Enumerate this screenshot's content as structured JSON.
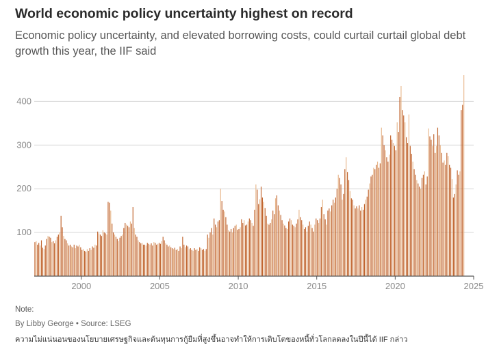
{
  "header": {
    "title": "World economic policy uncertainty highest on record",
    "subtitle": "Economic policy uncertainty, and elevated borrowing costs, could curtail curtail global debt growth this year, the IIF said"
  },
  "footer": {
    "note": "Note:",
    "credit": "By Libby George • Source: LSEG",
    "caption": "ความไม่แน่นอนของนโยบายเศรษฐกิจและต้นทุนการกู้ยืมที่สูงขึ้นอาจทำให้การเติบโตของหนี้ทั่วโลกลดลงในปีนี้ได้ IIF กล่าว"
  },
  "colors": {
    "bar_dark": "#c1652f",
    "bar_light": "#e8b98f",
    "grid": "#d9d9d9",
    "axis": "#555555"
  },
  "chart_data": {
    "type": "bar",
    "title": "World economic policy uncertainty highest on record",
    "xlabel": "",
    "ylabel": "",
    "frequency": "monthly",
    "x_start": "1997-01",
    "x_end": "2025-01",
    "xlim": [
      "1997-01",
      "2025-01"
    ],
    "ylim": [
      0,
      460
    ],
    "yticks": [
      100,
      200,
      300,
      400
    ],
    "xticks": [
      "2000",
      "2005",
      "2010",
      "2015",
      "2020",
      "2025"
    ],
    "grid": true,
    "legend": "none",
    "values": [
      78,
      80,
      72,
      76,
      70,
      82,
      65,
      62,
      70,
      85,
      92,
      90,
      88,
      78,
      80,
      75,
      82,
      90,
      95,
      100,
      138,
      112,
      92,
      85,
      82,
      75,
      70,
      72,
      68,
      66,
      72,
      64,
      70,
      68,
      72,
      66,
      60,
      62,
      58,
      56,
      62,
      58,
      64,
      60,
      68,
      65,
      72,
      70,
      102,
      98,
      95,
      92,
      105,
      100,
      98,
      95,
      170,
      168,
      150,
      120,
      100,
      95,
      90,
      85,
      80,
      88,
      92,
      95,
      110,
      122,
      118,
      115,
      112,
      125,
      120,
      158,
      110,
      95,
      90,
      82,
      78,
      75,
      76,
      72,
      72,
      70,
      76,
      74,
      72,
      75,
      70,
      78,
      76,
      72,
      74,
      76,
      74,
      80,
      90,
      82,
      75,
      72,
      68,
      70,
      66,
      64,
      62,
      65,
      60,
      62,
      58,
      68,
      64,
      90,
      72,
      66,
      70,
      68,
      62,
      64,
      60,
      58,
      64,
      60,
      62,
      58,
      66,
      64,
      60,
      62,
      58,
      62,
      95,
      88,
      100,
      110,
      95,
      132,
      118,
      112,
      125,
      128,
      200,
      172,
      152,
      148,
      135,
      118,
      105,
      102,
      108,
      100,
      110,
      115,
      118,
      106,
      108,
      112,
      130,
      122,
      128,
      116,
      118,
      125,
      132,
      128,
      122,
      115,
      152,
      210,
      198,
      165,
      176,
      205,
      180,
      170,
      156,
      138,
      120,
      118,
      122,
      130,
      150,
      142,
      178,
      185,
      162,
      150,
      140,
      128,
      120,
      116,
      110,
      108,
      125,
      132,
      128,
      118,
      115,
      112,
      120,
      130,
      152,
      135,
      128,
      118,
      108,
      112,
      102,
      115,
      125,
      118,
      110,
      102,
      118,
      132,
      128,
      122,
      132,
      158,
      175,
      142,
      130,
      118,
      150,
      155,
      148,
      162,
      175,
      168,
      180,
      200,
      232,
      225,
      210,
      175,
      188,
      245,
      272,
      238,
      220,
      195,
      178,
      175,
      162,
      155,
      160,
      155,
      162,
      150,
      158,
      152,
      165,
      175,
      182,
      198,
      212,
      228,
      232,
      248,
      245,
      255,
      262,
      248,
      258,
      340,
      322,
      300,
      288,
      272,
      262,
      278,
      322,
      312,
      305,
      298,
      288,
      352,
      330,
      410,
      435,
      380,
      368,
      352,
      318,
      305,
      370,
      298,
      280,
      262,
      245,
      232,
      220,
      212,
      205,
      200,
      225,
      232,
      240,
      210,
      228,
      338,
      320,
      312,
      298,
      325,
      282,
      298,
      340,
      322,
      300,
      282,
      260,
      265,
      255,
      282,
      275,
      255,
      248,
      222,
      180,
      188,
      210,
      242,
      232,
      240,
      380,
      392,
      460
    ]
  }
}
